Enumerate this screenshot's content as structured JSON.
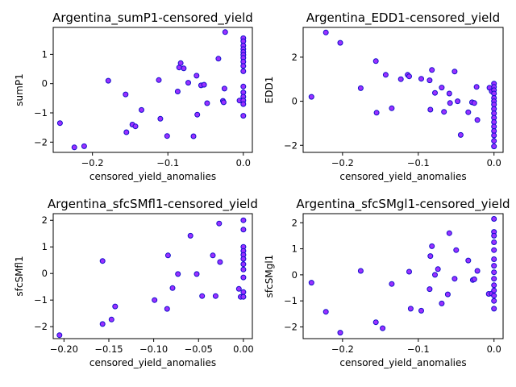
{
  "colors": {
    "face": "#9b30ff",
    "edge": "#1010cc",
    "axis": "#000000"
  },
  "chart_data": [
    {
      "type": "scatter",
      "title": "Argentina_sumP1-censored_yield",
      "xlabel": "censored_yield_anomalies",
      "ylabel": "sumP1",
      "xlim": [
        -0.252,
        0.012
      ],
      "ylim": [
        -2.35,
        1.92
      ],
      "xticks": [
        -0.2,
        -0.1,
        0.0
      ],
      "xtick_labels": [
        "−0.2",
        "−0.1",
        "0.0"
      ],
      "yticks": [
        -2,
        -1,
        0,
        1
      ],
      "ytick_labels": [
        "−2",
        "−1",
        "0",
        "1"
      ],
      "points": [
        [
          -0.243,
          -1.35
        ],
        [
          -0.224,
          -2.18
        ],
        [
          -0.211,
          -2.14
        ],
        [
          -0.179,
          0.1
        ],
        [
          -0.156,
          -0.37
        ],
        [
          -0.155,
          -1.66
        ],
        [
          -0.147,
          -1.4
        ],
        [
          -0.143,
          -1.46
        ],
        [
          -0.135,
          -0.9
        ],
        [
          -0.112,
          0.12
        ],
        [
          -0.11,
          -1.2
        ],
        [
          -0.101,
          -1.79
        ],
        [
          -0.087,
          -0.27
        ],
        [
          -0.085,
          0.55
        ],
        [
          -0.083,
          0.7
        ],
        [
          -0.079,
          0.52
        ],
        [
          -0.073,
          0.03
        ],
        [
          -0.066,
          -1.8
        ],
        [
          -0.062,
          0.27
        ],
        [
          -0.061,
          -1.06
        ],
        [
          -0.056,
          -0.06
        ],
        [
          -0.052,
          -0.04
        ],
        [
          -0.048,
          -0.67
        ],
        [
          -0.033,
          0.85
        ],
        [
          -0.027,
          -0.59
        ],
        [
          -0.026,
          -0.64
        ],
        [
          -0.025,
          -0.17
        ],
        [
          -0.024,
          1.76
        ],
        [
          -0.005,
          -0.58
        ],
        [
          0,
          1.55
        ],
        [
          0,
          1.45
        ],
        [
          0,
          1.3
        ],
        [
          0,
          1.18
        ],
        [
          0,
          1.08
        ],
        [
          0,
          0.98
        ],
        [
          0,
          0.88
        ],
        [
          0,
          0.75
        ],
        [
          0,
          0.6
        ],
        [
          0,
          0.42
        ],
        [
          0,
          -0.1
        ],
        [
          0,
          -0.3
        ],
        [
          0,
          -0.45
        ],
        [
          0,
          -0.58
        ],
        [
          0,
          -0.7
        ],
        [
          0,
          -1.1
        ]
      ]
    },
    {
      "type": "scatter",
      "title": "Argentina_EDD1-censored_yield",
      "xlabel": "censored_yield_anomalies",
      "ylabel": "EDD1",
      "xlim": [
        -0.252,
        0.012
      ],
      "ylim": [
        -2.32,
        3.35
      ],
      "xticks": [
        -0.2,
        -0.1,
        0.0
      ],
      "xtick_labels": [
        "−0.2",
        "−0.1",
        "0.0"
      ],
      "yticks": [
        -2,
        0,
        2
      ],
      "ytick_labels": [
        "−2",
        "0",
        "2"
      ],
      "points": [
        [
          -0.241,
          0.2
        ],
        [
          -0.222,
          3.12
        ],
        [
          -0.203,
          2.65
        ],
        [
          -0.176,
          0.59
        ],
        [
          -0.156,
          1.82
        ],
        [
          -0.155,
          -0.52
        ],
        [
          -0.143,
          1.2
        ],
        [
          -0.135,
          -0.32
        ],
        [
          -0.123,
          1.0
        ],
        [
          -0.114,
          1.2
        ],
        [
          -0.112,
          1.13
        ],
        [
          -0.096,
          1.02
        ],
        [
          -0.085,
          0.95
        ],
        [
          -0.084,
          -0.38
        ],
        [
          -0.082,
          1.42
        ],
        [
          -0.078,
          0.38
        ],
        [
          -0.069,
          0.62
        ],
        [
          -0.066,
          -0.48
        ],
        [
          -0.059,
          0.35
        ],
        [
          -0.058,
          -0.08
        ],
        [
          -0.052,
          1.35
        ],
        [
          -0.048,
          0.0
        ],
        [
          -0.044,
          -1.53
        ],
        [
          -0.034,
          -0.5
        ],
        [
          -0.029,
          -0.05
        ],
        [
          -0.026,
          -0.08
        ],
        [
          -0.023,
          0.65
        ],
        [
          -0.022,
          -0.85
        ],
        [
          -0.006,
          0.61
        ],
        [
          -0.003,
          0.45
        ],
        [
          0,
          0.8
        ],
        [
          0,
          0.65
        ],
        [
          0,
          0.5
        ],
        [
          0,
          0.35
        ],
        [
          0,
          0.15
        ],
        [
          0,
          0.0
        ],
        [
          0,
          -0.15
        ],
        [
          0,
          -0.35
        ],
        [
          0,
          -0.55
        ],
        [
          0,
          -0.75
        ],
        [
          0,
          -0.95
        ],
        [
          0,
          -1.15
        ],
        [
          0,
          -1.35
        ],
        [
          0,
          -1.55
        ],
        [
          0,
          -1.8
        ],
        [
          0,
          -2.05
        ]
      ]
    },
    {
      "type": "scatter",
      "title": "Argentina_sfcSMfl1-censored_yield",
      "xlabel": "censored_yield_anomalies",
      "ylabel": "sfcSMfl1",
      "xlim": [
        -0.212,
        0.01
      ],
      "ylim": [
        -2.45,
        2.25
      ],
      "xticks": [
        -0.2,
        -0.15,
        -0.1,
        -0.05,
        0.0
      ],
      "xtick_labels": [
        "−0.20",
        "−0.15",
        "−0.10",
        "−0.05",
        "0.00"
      ],
      "yticks": [
        -2,
        -1,
        0,
        1,
        2
      ],
      "ytick_labels": [
        "−2",
        "−1",
        "0",
        "1",
        "2"
      ],
      "points": [
        [
          -0.205,
          -2.32
        ],
        [
          -0.157,
          0.47
        ],
        [
          -0.157,
          -1.9
        ],
        [
          -0.147,
          -1.73
        ],
        [
          -0.143,
          -1.24
        ],
        [
          -0.099,
          -1.0
        ],
        [
          -0.085,
          -1.33
        ],
        [
          -0.084,
          0.68
        ],
        [
          -0.079,
          -0.55
        ],
        [
          -0.073,
          -0.02
        ],
        [
          -0.059,
          1.42
        ],
        [
          -0.052,
          -0.02
        ],
        [
          -0.046,
          -0.85
        ],
        [
          -0.034,
          0.68
        ],
        [
          -0.031,
          -0.85
        ],
        [
          -0.027,
          1.88
        ],
        [
          -0.026,
          0.43
        ],
        [
          -0.005,
          -0.58
        ],
        [
          -0.003,
          -0.88
        ],
        [
          0,
          2.0
        ],
        [
          0,
          1.65
        ],
        [
          0,
          1.0
        ],
        [
          0,
          0.85
        ],
        [
          0,
          0.7
        ],
        [
          0,
          0.55
        ],
        [
          0,
          0.35
        ],
        [
          0,
          0.15
        ],
        [
          0,
          -0.15
        ],
        [
          0,
          -0.7
        ],
        [
          0,
          -0.88
        ]
      ]
    },
    {
      "type": "scatter",
      "title": "Argentina_sfcSMgl1-censored_yield",
      "xlabel": "censored_yield_anomalies",
      "ylabel": "sfcSMgl1",
      "xlim": [
        -0.252,
        0.012
      ],
      "ylim": [
        -2.45,
        2.35
      ],
      "xticks": [
        -0.2,
        -0.1,
        0.0
      ],
      "xtick_labels": [
        "−0.2",
        "−0.1",
        "0.0"
      ],
      "yticks": [
        -2,
        -1,
        0,
        1,
        2
      ],
      "ytick_labels": [
        "−2",
        "−1",
        "0",
        "1",
        "2"
      ],
      "points": [
        [
          -0.241,
          -0.3
        ],
        [
          -0.222,
          -1.42
        ],
        [
          -0.203,
          -2.22
        ],
        [
          -0.176,
          0.15
        ],
        [
          -0.156,
          -1.82
        ],
        [
          -0.147,
          -2.05
        ],
        [
          -0.135,
          -0.35
        ],
        [
          -0.112,
          0.12
        ],
        [
          -0.11,
          -1.3
        ],
        [
          -0.096,
          -1.38
        ],
        [
          -0.085,
          -0.55
        ],
        [
          -0.084,
          0.72
        ],
        [
          -0.082,
          1.1
        ],
        [
          -0.078,
          0.0
        ],
        [
          -0.074,
          0.22
        ],
        [
          -0.069,
          -1.1
        ],
        [
          -0.061,
          -0.75
        ],
        [
          -0.059,
          1.6
        ],
        [
          -0.052,
          -0.15
        ],
        [
          -0.05,
          0.95
        ],
        [
          -0.034,
          0.55
        ],
        [
          -0.028,
          -0.2
        ],
        [
          -0.026,
          -0.17
        ],
        [
          -0.022,
          0.15
        ],
        [
          -0.007,
          -0.73
        ],
        [
          -0.003,
          -0.72
        ],
        [
          0,
          2.15
        ],
        [
          0,
          1.65
        ],
        [
          0,
          1.5
        ],
        [
          0,
          1.25
        ],
        [
          0,
          0.95
        ],
        [
          0,
          0.6
        ],
        [
          0,
          0.35
        ],
        [
          0,
          0.1
        ],
        [
          0,
          -0.15
        ],
        [
          0,
          -0.4
        ],
        [
          0,
          -0.6
        ],
        [
          0,
          -0.8
        ],
        [
          0,
          -1.0
        ],
        [
          0,
          -1.3
        ]
      ]
    }
  ]
}
